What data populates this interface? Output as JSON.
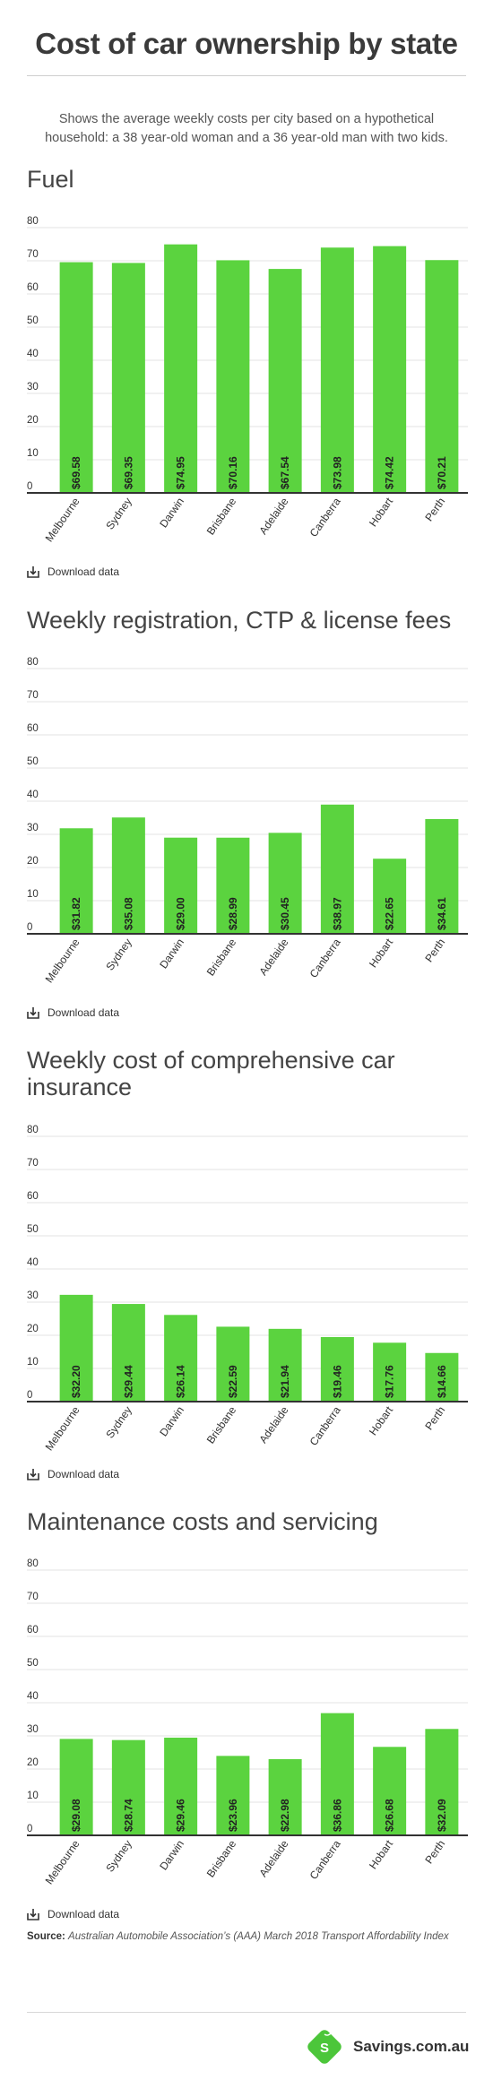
{
  "header": {
    "title": "Cost of car ownership by state",
    "subtitle": "Shows the average weekly costs per city based on a hypothetical household: a 38 year-old woman and a 36 year-old man with two kids."
  },
  "download_label": "Download data",
  "source": {
    "label": "Source:",
    "text": "Australian Automobile Association’s (AAA) March 2018 Transport Affordability Index"
  },
  "brand": {
    "name": "Savings.com.au",
    "logo_letter": "S",
    "color": "#4cc63a"
  },
  "colors": {
    "bar": "#5bd33f",
    "axis": "#333333",
    "grid": "#e3e3e3"
  },
  "chart_data": [
    {
      "type": "bar",
      "title": "Fuel",
      "categories": [
        "Melbourne",
        "Sydney",
        "Darwin",
        "Brisbane",
        "Adelaide",
        "Canberra",
        "Hobart",
        "Perth"
      ],
      "values": [
        69.58,
        69.35,
        74.95,
        70.16,
        67.54,
        73.98,
        74.42,
        70.21
      ],
      "data_labels": [
        "$69.58",
        "$69.35",
        "$74.95",
        "$70.16",
        "$67.54",
        "$73.98",
        "$74.42",
        "$70.21"
      ],
      "yticks": [
        "80",
        "70",
        "60",
        "50",
        "40",
        "30",
        "20",
        "10",
        "0"
      ],
      "ylim": [
        0,
        80
      ],
      "grid": true
    },
    {
      "type": "bar",
      "title": "Weekly registration, CTP & license fees",
      "categories": [
        "Melbourne",
        "Sydney",
        "Darwin",
        "Brisbane",
        "Adelaide",
        "Canberra",
        "Hobart",
        "Perth"
      ],
      "values": [
        31.82,
        35.08,
        29.0,
        28.99,
        30.45,
        38.97,
        22.65,
        34.61
      ],
      "data_labels": [
        "$31.82",
        "$35.08",
        "$29.00",
        "$28.99",
        "$30.45",
        "$38.97",
        "$22.65",
        "$34.61"
      ],
      "yticks": [
        "80",
        "70",
        "60",
        "50",
        "40",
        "30",
        "20",
        "10",
        "0"
      ],
      "ylim": [
        0,
        80
      ],
      "grid": true
    },
    {
      "type": "bar",
      "title": "Weekly cost of comprehensive car insurance",
      "categories": [
        "Melbourne",
        "Sydney",
        "Darwin",
        "Brisbane",
        "Adelaide",
        "Canberra",
        "Hobart",
        "Perth"
      ],
      "values": [
        32.2,
        29.44,
        26.14,
        22.59,
        21.94,
        19.46,
        17.76,
        14.66
      ],
      "data_labels": [
        "$32.20",
        "$29.44",
        "$26.14",
        "$22.59",
        "$21.94",
        "$19.46",
        "$17.76",
        "$14.66"
      ],
      "yticks": [
        "80",
        "70",
        "60",
        "50",
        "40",
        "30",
        "20",
        "10",
        "0"
      ],
      "ylim": [
        0,
        80
      ],
      "grid": true
    },
    {
      "type": "bar",
      "title": "Maintenance costs and servicing",
      "categories": [
        "Melbourne",
        "Sydney",
        "Darwin",
        "Brisbane",
        "Adelaide",
        "Canberra",
        "Hobart",
        "Perth"
      ],
      "values": [
        29.08,
        28.74,
        29.46,
        23.96,
        22.98,
        36.86,
        26.68,
        32.09
      ],
      "data_labels": [
        "$29.08",
        "$28.74",
        "$29.46",
        "$23.96",
        "$22.98",
        "$36.86",
        "$26.68",
        "$32.09"
      ],
      "yticks": [
        "80",
        "70",
        "60",
        "50",
        "40",
        "30",
        "20",
        "10",
        "0"
      ],
      "ylim": [
        0,
        80
      ],
      "grid": true
    }
  ]
}
